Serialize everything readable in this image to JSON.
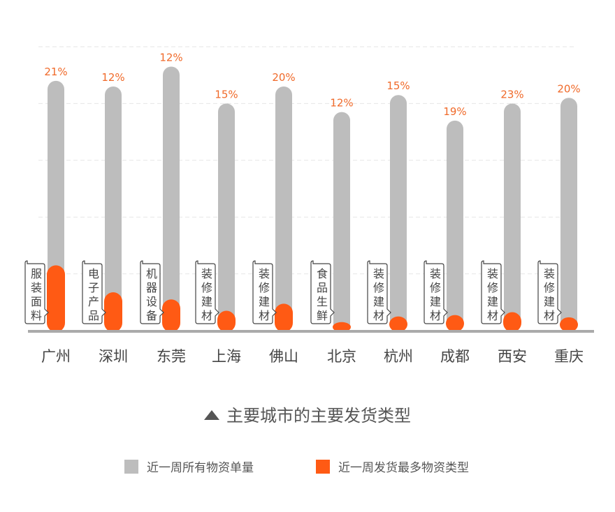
{
  "chart_data": {
    "type": "bar",
    "title": "主要城市的主要发货类型",
    "xlabel": "",
    "ylabel": "",
    "ylim": [
      0,
      100
    ],
    "grid": true,
    "legend_position": "bottom",
    "categories": [
      "广州",
      "深圳",
      "东莞",
      "上海",
      "佛山",
      "北京",
      "杭州",
      "成都",
      "西安",
      "重庆"
    ],
    "series": [
      {
        "name": "近一周所有物资单量",
        "color": "#bdbdbd",
        "values": [
          88,
          86,
          93,
          80,
          86,
          77,
          83,
          74,
          80,
          82
        ]
      },
      {
        "name": "近一周发货最多物资类型",
        "color": "#ff5a14",
        "values": [
          23,
          13.5,
          11,
          7,
          9.5,
          3,
          5,
          5.5,
          6.5,
          4.7
        ]
      }
    ],
    "percent_labels": [
      "21%",
      "12%",
      "12%",
      "15%",
      "20%",
      "12%",
      "15%",
      "19%",
      "23%",
      "20%"
    ],
    "type_labels": [
      "服装面料",
      "电子产品",
      "机器设备",
      "装修建材",
      "装修建材",
      "食品生鲜",
      "装修建材",
      "装修建材",
      "装修建材",
      "装修建材"
    ],
    "label_color": "#f06a2a"
  }
}
